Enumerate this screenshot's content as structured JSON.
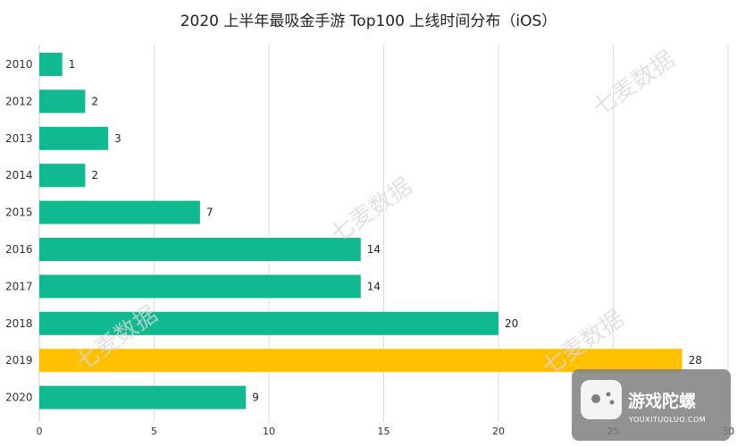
{
  "chart_data": {
    "type": "bar",
    "orientation": "horizontal",
    "title": "2020 上半年最吸金手游 Top100 上线时间分布（iOS）",
    "categories": [
      "2010",
      "2012",
      "2013",
      "2014",
      "2015",
      "2016",
      "2017",
      "2018",
      "2019",
      "2020"
    ],
    "values": [
      1,
      2,
      3,
      2,
      7,
      14,
      14,
      20,
      28,
      9
    ],
    "xlim": [
      0,
      30
    ],
    "x_ticks": [
      0,
      5,
      10,
      15,
      20,
      25,
      30
    ],
    "grid": "vertical",
    "legend": "none",
    "highlight_category": "2019",
    "colors": {
      "bar": "#10b990",
      "highlight": "#ffc000",
      "grid": "#dddddd"
    }
  },
  "watermarks": [
    "七麦数据",
    "七麦数据",
    "七麦数据",
    "七麦数据"
  ],
  "brand": {
    "name": "游戏陀螺",
    "url": "YOUXITUOLUO.COM",
    "icon": "game-controller-icon"
  }
}
